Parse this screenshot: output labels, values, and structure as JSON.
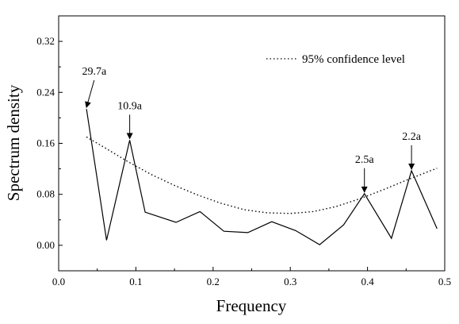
{
  "chart_data": {
    "type": "line",
    "xlabel": "Frequency",
    "ylabel": "Spectrum density",
    "xlim": [
      0.0,
      0.5
    ],
    "ylim": [
      -0.04,
      0.36
    ],
    "x_ticks": [
      0.0,
      0.1,
      0.2,
      0.3,
      0.4,
      0.5
    ],
    "y_ticks": [
      0.0,
      0.08,
      0.16,
      0.24,
      0.32
    ],
    "x_tick_labels": [
      "0.0",
      "0.1",
      "0.2",
      "0.3",
      "0.4",
      "0.5"
    ],
    "y_tick_labels": [
      "0.00",
      "0.08",
      "0.16",
      "0.24",
      "0.32"
    ],
    "grid": false,
    "legend_position": "top-right",
    "series": [
      {
        "style": "solid",
        "color": "#000000",
        "x": [
          0.036,
          0.062,
          0.092,
          0.112,
          0.152,
          0.183,
          0.214,
          0.245,
          0.276,
          0.307,
          0.338,
          0.369,
          0.396,
          0.431,
          0.457,
          0.49
        ],
        "y": [
          0.214,
          0.008,
          0.165,
          0.052,
          0.036,
          0.053,
          0.022,
          0.02,
          0.037,
          0.023,
          0.001,
          0.032,
          0.081,
          0.011,
          0.117,
          0.026
        ]
      },
      {
        "name": "95% confidence level",
        "style": "dotted",
        "color": "#000000",
        "x": [
          0.036,
          0.06,
          0.09,
          0.12,
          0.15,
          0.18,
          0.21,
          0.24,
          0.27,
          0.3,
          0.33,
          0.36,
          0.39,
          0.42,
          0.45,
          0.49
        ],
        "y": [
          0.17,
          0.153,
          0.131,
          0.111,
          0.094,
          0.079,
          0.066,
          0.056,
          0.051,
          0.05,
          0.053,
          0.061,
          0.073,
          0.087,
          0.102,
          0.121
        ]
      }
    ],
    "annotations": [
      {
        "text": "29.7a",
        "x": 0.036,
        "y": 0.214,
        "label_dx": 0.01,
        "label_dy": 0.05
      },
      {
        "text": "10.9a",
        "x": 0.092,
        "y": 0.165,
        "label_dx": 0.0,
        "label_dy": 0.045
      },
      {
        "text": "2.5a",
        "x": 0.396,
        "y": 0.081,
        "label_dx": 0.0,
        "label_dy": 0.045
      },
      {
        "text": "2.2a",
        "x": 0.457,
        "y": 0.117,
        "label_dx": 0.0,
        "label_dy": 0.045
      }
    ]
  }
}
